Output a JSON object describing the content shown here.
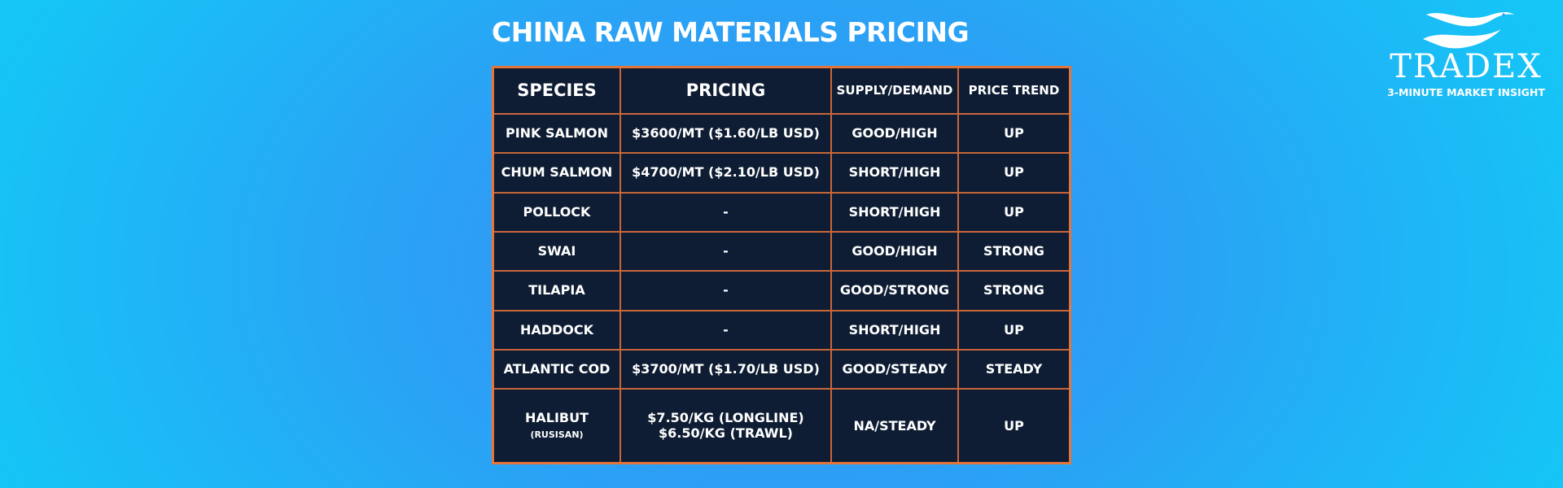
{
  "title": "CHINA RAW MATERIALS PRICING",
  "logo": {
    "wordmark": "TRADEX",
    "tagline": "3-MINUTE MARKET INSIGHT"
  },
  "table": {
    "headers": {
      "species": "SPECIES",
      "pricing": "PRICING",
      "supply_demand": "SUPPLY/DEMAND",
      "price_trend": "PRICE TREND"
    },
    "rows": [
      {
        "species": "PINK SALMON",
        "species_note": "",
        "pricing": [
          "$3600/MT ($1.60/LB USD)"
        ],
        "supply_demand": "GOOD/HIGH",
        "price_trend": "UP"
      },
      {
        "species": "CHUM SALMON",
        "species_note": "",
        "pricing": [
          "$4700/MT ($2.10/LB USD)"
        ],
        "supply_demand": "SHORT/HIGH",
        "price_trend": "UP"
      },
      {
        "species": "POLLOCK",
        "species_note": "",
        "pricing": [
          "-"
        ],
        "supply_demand": "SHORT/HIGH",
        "price_trend": "UP"
      },
      {
        "species": "SWAI",
        "species_note": "",
        "pricing": [
          "-"
        ],
        "supply_demand": "GOOD/HIGH",
        "price_trend": "STRONG"
      },
      {
        "species": "TILAPIA",
        "species_note": "",
        "pricing": [
          "-"
        ],
        "supply_demand": "GOOD/STRONG",
        "price_trend": "STRONG"
      },
      {
        "species": "HADDOCK",
        "species_note": "",
        "pricing": [
          "-"
        ],
        "supply_demand": "SHORT/HIGH",
        "price_trend": "UP"
      },
      {
        "species": "ATLANTIC COD",
        "species_note": "",
        "pricing": [
          "$3700/MT ($1.70/LB USD)"
        ],
        "supply_demand": "GOOD/STEADY",
        "price_trend": "STEADY"
      },
      {
        "species": "HALIBUT",
        "species_note": "(RUSISAN)",
        "pricing": [
          "$7.50/KG (LONGLINE)",
          "$6.50/KG (TRAWL)"
        ],
        "supply_demand": "NA/STEADY",
        "price_trend": "UP"
      }
    ]
  },
  "colors": {
    "table_background": "#0e1d33",
    "table_border": "#e4743a",
    "background_center": "#3a8ff4",
    "background_edge": "#14c7f6",
    "text": "#ffffff"
  }
}
